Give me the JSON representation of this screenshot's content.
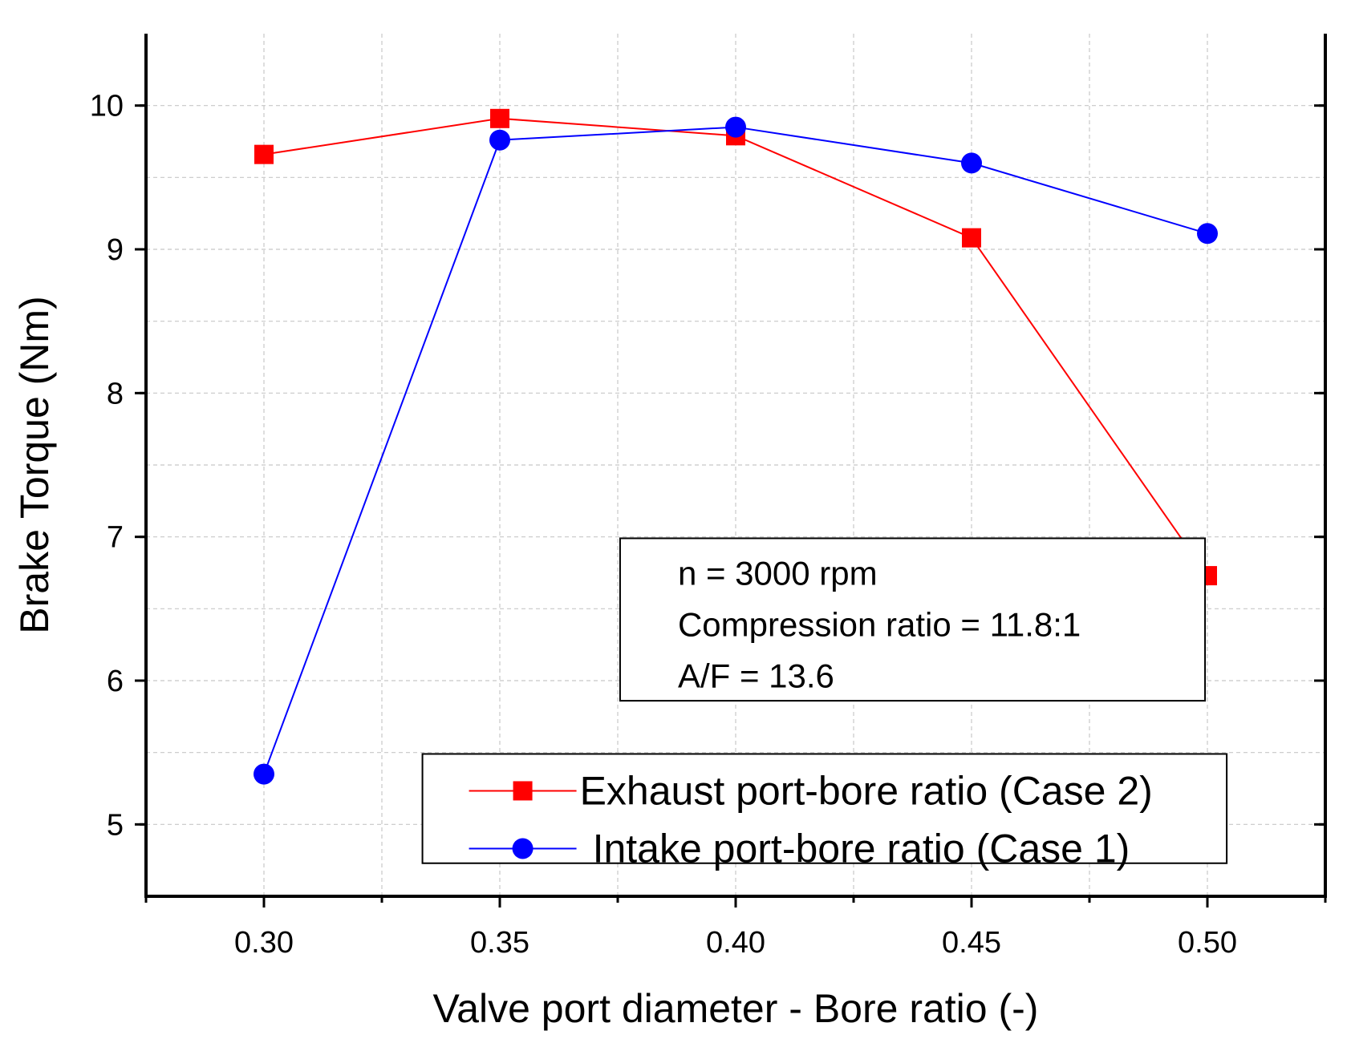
{
  "chart_data": {
    "type": "line",
    "title": "",
    "xlabel": "Valve port diameter - Bore ratio (-)",
    "ylabel": "Brake Torque (Nm)",
    "xlim": [
      0.275,
      0.525
    ],
    "ylim": [
      4.5,
      10.5
    ],
    "xticks": [
      0.3,
      0.35,
      0.4,
      0.45,
      0.5
    ],
    "xtick_labels": [
      "0.30",
      "0.35",
      "0.40",
      "0.45",
      "0.50"
    ],
    "yticks": [
      5,
      6,
      7,
      8,
      9,
      10
    ],
    "ytick_labels": [
      "5",
      "6",
      "7",
      "8",
      "9",
      "10"
    ],
    "grid": true,
    "x": [
      0.3,
      0.35,
      0.4,
      0.45,
      0.5
    ],
    "series": [
      {
        "name": "Exhaust port-bore ratio (Case 2)",
        "color": "#ff0000",
        "marker": "square",
        "values": [
          9.66,
          9.91,
          9.79,
          9.08,
          6.73
        ]
      },
      {
        "name": "Intake port-bore ratio (Case 1)",
        "color": "#0000ff",
        "marker": "circle",
        "values": [
          5.35,
          9.76,
          9.85,
          9.6,
          9.11
        ]
      }
    ],
    "annotation": {
      "lines": [
        "n = 3000 rpm",
        "Compression ratio = 11.8:1",
        "A/F = 13.6"
      ]
    },
    "legend_position": "bottom-right"
  }
}
